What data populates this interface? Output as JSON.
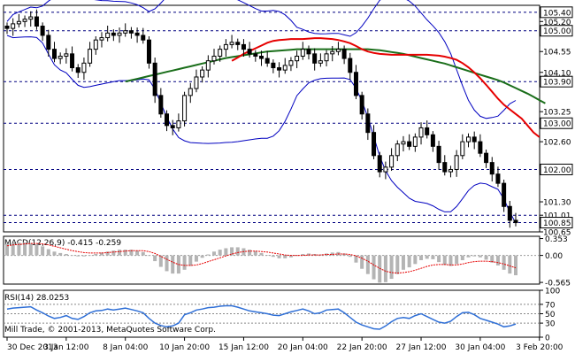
{
  "chart_data": [
    {
      "type": "line",
      "panel": "price",
      "ylim": [
        100.65,
        105.55
      ],
      "y_ticks": [
        105.4,
        105.2,
        105.0,
        104.55,
        104.1,
        103.9,
        103.25,
        103.0,
        102.6,
        102.0,
        101.3,
        101.01,
        100.85,
        100.65
      ],
      "horizontal_levels": [
        105.4,
        105.0,
        103.9,
        103.0,
        102.0,
        101.01,
        100.85
      ],
      "highlighted_levels": [
        105.4,
        105.0,
        103.9,
        103.0,
        102.0,
        100.85
      ],
      "x_tick_labels": [
        "30 Dec 2013",
        "3 Jan 12:00",
        "8 Jan 04:00",
        "10 Jan 20:00",
        "15 Jan 12:00",
        "20 Jan 04:00",
        "22 Jan 20:00",
        "27 Jan 12:00",
        "30 Jan 04:00",
        "3 Feb 20:00"
      ],
      "x_tick_index": [
        0,
        10,
        20,
        30,
        40,
        50,
        60,
        70,
        80,
        90
      ],
      "close": [
        105.05,
        105.15,
        105.2,
        105.25,
        105.3,
        105.1,
        104.9,
        104.6,
        104.4,
        104.45,
        104.5,
        104.2,
        104.1,
        104.3,
        104.6,
        104.8,
        104.85,
        104.95,
        104.9,
        104.95,
        105.0,
        104.95,
        104.9,
        104.8,
        104.3,
        103.6,
        103.2,
        102.95,
        102.9,
        103.05,
        103.6,
        103.75,
        104.0,
        104.15,
        104.35,
        104.45,
        104.6,
        104.7,
        104.75,
        104.7,
        104.6,
        104.5,
        104.45,
        104.4,
        104.3,
        104.2,
        104.15,
        104.25,
        104.35,
        104.45,
        104.6,
        104.5,
        104.3,
        104.35,
        104.5,
        104.55,
        104.6,
        104.4,
        104.1,
        103.6,
        103.2,
        102.8,
        102.3,
        101.95,
        102.05,
        102.3,
        102.55,
        102.6,
        102.5,
        102.7,
        102.9,
        102.75,
        102.5,
        102.15,
        101.95,
        102.0,
        102.3,
        102.6,
        102.7,
        102.6,
        102.35,
        102.15,
        101.9,
        101.7,
        101.2,
        100.9,
        100.85
      ],
      "sma_short": [
        104.35,
        104.42,
        104.5,
        104.56,
        104.62,
        104.68,
        104.74,
        104.78,
        104.8,
        104.81,
        104.82,
        104.82,
        104.82,
        104.83,
        104.84,
        104.84,
        104.83,
        104.82,
        104.8,
        104.77,
        104.73,
        104.67,
        104.6,
        104.55,
        104.52,
        104.5,
        104.49,
        104.48,
        104.48,
        104.48,
        104.48,
        104.48,
        104.48,
        104.48,
        104.47,
        104.46,
        104.44,
        104.41,
        104.37,
        104.3,
        104.21,
        104.1,
        103.97,
        103.83,
        103.68,
        103.53,
        103.4,
        103.3,
        103.2,
        103.1,
        102.95,
        102.8,
        102.7
      ],
      "sma_short_start": 38,
      "sma_long": [
        103.9,
        103.93,
        103.96,
        103.99,
        104.02,
        104.05,
        104.08,
        104.11,
        104.14,
        104.17,
        104.2,
        104.23,
        104.26,
        104.29,
        104.32,
        104.35,
        104.38,
        104.41,
        104.43,
        104.45,
        104.47,
        104.49,
        104.51,
        104.53,
        104.55,
        104.56,
        104.57,
        104.58,
        104.59,
        104.6,
        104.6,
        104.6,
        104.6,
        104.6,
        104.6,
        104.6,
        104.6,
        104.6,
        104.6,
        104.6,
        104.6,
        104.6,
        104.59,
        104.58,
        104.56,
        104.54,
        104.52,
        104.5,
        104.47,
        104.44,
        104.41,
        104.38,
        104.35,
        104.32,
        104.29,
        104.25,
        104.21,
        104.17,
        104.13,
        104.09,
        104.05,
        104.01,
        103.97,
        103.93,
        103.88,
        103.82,
        103.76,
        103.7,
        103.64,
        103.57,
        103.5,
        103.43
      ],
      "sma_long_start": 20
    },
    {
      "type": "bar",
      "panel": "macd",
      "title": "MACD(12,26,9) -0.415 -0.259",
      "ylim": [
        -0.6,
        0.4
      ],
      "y_ticks": [
        0.353,
        0.0,
        -0.565
      ],
      "histogram": [
        0.24,
        0.26,
        0.27,
        0.27,
        0.26,
        0.23,
        0.19,
        0.13,
        0.08,
        0.05,
        0.03,
        0.0,
        -0.02,
        -0.02,
        0.0,
        0.03,
        0.06,
        0.08,
        0.1,
        0.12,
        0.12,
        0.12,
        0.1,
        0.07,
        0.0,
        -0.12,
        -0.24,
        -0.33,
        -0.38,
        -0.38,
        -0.3,
        -0.22,
        -0.13,
        -0.05,
        0.02,
        0.08,
        0.12,
        0.15,
        0.17,
        0.17,
        0.15,
        0.12,
        0.09,
        0.05,
        0.01,
        -0.03,
        -0.06,
        -0.06,
        -0.04,
        -0.01,
        0.03,
        0.04,
        0.03,
        0.02,
        0.04,
        0.06,
        0.07,
        0.04,
        -0.03,
        -0.15,
        -0.28,
        -0.39,
        -0.5,
        -0.57,
        -0.56,
        -0.49,
        -0.39,
        -0.3,
        -0.25,
        -0.18,
        -0.1,
        -0.07,
        -0.08,
        -0.14,
        -0.2,
        -0.22,
        -0.18,
        -0.1,
        -0.04,
        -0.02,
        -0.04,
        -0.09,
        -0.15,
        -0.21,
        -0.3,
        -0.38,
        -0.415
      ],
      "signal": [
        0.2,
        0.22,
        0.23,
        0.24,
        0.25,
        0.25,
        0.24,
        0.22,
        0.19,
        0.16,
        0.13,
        0.1,
        0.08,
        0.06,
        0.05,
        0.05,
        0.05,
        0.06,
        0.07,
        0.08,
        0.09,
        0.1,
        0.1,
        0.1,
        0.08,
        0.04,
        -0.02,
        -0.08,
        -0.14,
        -0.19,
        -0.21,
        -0.21,
        -0.2,
        -0.17,
        -0.13,
        -0.09,
        -0.05,
        -0.01,
        0.03,
        0.06,
        0.08,
        0.09,
        0.09,
        0.08,
        0.07,
        0.05,
        0.03,
        0.01,
        0.0,
        0.0,
        0.0,
        0.01,
        0.01,
        0.01,
        0.02,
        0.02,
        0.03,
        0.03,
        0.02,
        -0.01,
        -0.06,
        -0.12,
        -0.2,
        -0.27,
        -0.33,
        -0.36,
        -0.37,
        -0.36,
        -0.34,
        -0.31,
        -0.27,
        -0.23,
        -0.2,
        -0.19,
        -0.19,
        -0.2,
        -0.2,
        -0.18,
        -0.15,
        -0.13,
        -0.12,
        -0.12,
        -0.13,
        -0.15,
        -0.18,
        -0.22,
        -0.259
      ]
    },
    {
      "type": "line",
      "panel": "rsi",
      "title": "RSI(14) 28.0253",
      "ylim": [
        0,
        100
      ],
      "y_ticks": [
        100,
        70,
        50,
        30,
        0
      ],
      "levels": [
        70,
        50,
        30
      ],
      "values": [
        60,
        62,
        63,
        64,
        65,
        58,
        52,
        45,
        40,
        42,
        46,
        40,
        38,
        44,
        52,
        56,
        57,
        60,
        58,
        60,
        62,
        59,
        56,
        52,
        40,
        30,
        25,
        22,
        24,
        30,
        48,
        52,
        58,
        60,
        63,
        64,
        66,
        67,
        67,
        64,
        60,
        56,
        54,
        52,
        50,
        47,
        46,
        50,
        54,
        57,
        60,
        56,
        50,
        52,
        58,
        59,
        60,
        52,
        42,
        32,
        26,
        22,
        18,
        17,
        24,
        33,
        40,
        42,
        40,
        46,
        50,
        44,
        38,
        32,
        30,
        34,
        44,
        52,
        53,
        48,
        40,
        36,
        32,
        28,
        22,
        24,
        28.0253
      ]
    }
  ],
  "footer_text": "Mill Trade, © 2001-2013, MetaQuotes Software Corp.",
  "colors": {
    "background": "#ffffff",
    "candle": "#000000",
    "sma_short": "#e60000",
    "sma_long": "#1a6e1a",
    "bollinger": "#0000c0",
    "macd_histogram": "#b4b4b4",
    "macd_signal": "#e60000",
    "rsi_line": "#2f6fd6",
    "level_lines": "#000080"
  }
}
